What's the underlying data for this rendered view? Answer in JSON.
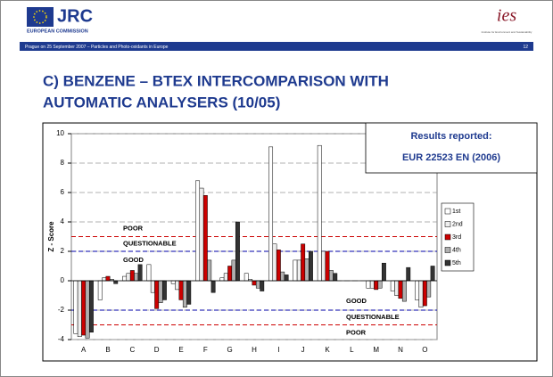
{
  "header": {
    "logo_left": "JRC",
    "logo_left_sub": "EUROPEAN COMMISSION",
    "logo_right": "ies",
    "logo_right_sub": "Institute for Environment and Sustainability",
    "footer_text": "Prague on 25 September 2007 – Particles and Photo-oxidants in Europe",
    "page_number": "12"
  },
  "slide_title": [
    "C) BENZENE – BTEX INTERCOMPARISON WITH",
    "AUTOMATIC ANALYSERS (10/05)"
  ],
  "chart_data": {
    "type": "bar",
    "y_label": "Z - Score",
    "annotation": [
      "Results reported:",
      "EUR 22523 EN (2006)"
    ],
    "categories": [
      "A",
      "B",
      "C",
      "D",
      "E",
      "F",
      "G",
      "H",
      "I",
      "J",
      "K",
      "L",
      "M",
      "N",
      "O"
    ],
    "series": [
      {
        "name": "1st",
        "color": "#ffffff",
        "values": [
          -3.6,
          -1.3,
          0.3,
          1.1,
          -0.2,
          6.8,
          0.2,
          0.5,
          9.1,
          1.4,
          9.2,
          null,
          -0.5,
          -0.7,
          -1.3
        ]
      },
      {
        "name": "2nd",
        "color": "#eeeeee",
        "values": [
          -3.8,
          0.2,
          0.5,
          -0.8,
          -0.6,
          6.3,
          0.5,
          0.1,
          2.5,
          1.4,
          2.0,
          null,
          -0.5,
          -1.0,
          -1.8
        ]
      },
      {
        "name": "3rd",
        "color": "#cc0000",
        "values": [
          -3.7,
          0.3,
          0.7,
          -1.9,
          -1.3,
          5.8,
          1.0,
          -0.3,
          2.1,
          2.5,
          2.0,
          null,
          -0.6,
          -1.2,
          -1.7
        ]
      },
      {
        "name": "4th",
        "color": "#b0b0b0",
        "values": [
          -3.9,
          0.1,
          0.5,
          -1.5,
          -1.8,
          1.4,
          1.4,
          -0.5,
          0.6,
          1.5,
          0.7,
          null,
          -0.5,
          -1.4,
          -1.1
        ]
      },
      {
        "name": "5th",
        "color": "#333333",
        "values": [
          -3.5,
          -0.2,
          1.1,
          -1.3,
          -1.6,
          -0.8,
          4.0,
          -0.7,
          0.4,
          2.0,
          0.5,
          null,
          1.2,
          0.9,
          1.0
        ]
      }
    ],
    "ylim": [
      -4,
      10
    ],
    "yticks": [
      -4,
      -2,
      0,
      2,
      4,
      6,
      8,
      10
    ],
    "grid": true,
    "thresholds": [
      {
        "value": 3,
        "color": "#cc0000"
      },
      {
        "value": 2,
        "color": "#0000aa"
      },
      {
        "value": -2,
        "color": "#0000aa"
      },
      {
        "value": -3,
        "color": "#cc0000"
      }
    ],
    "zone_labels": {
      "upper": [
        "POOR",
        "QUESTIONABLE",
        "GOOD"
      ],
      "lower": [
        "GOOD",
        "QUESTIONABLE",
        "POOR"
      ]
    },
    "legend": "right"
  }
}
